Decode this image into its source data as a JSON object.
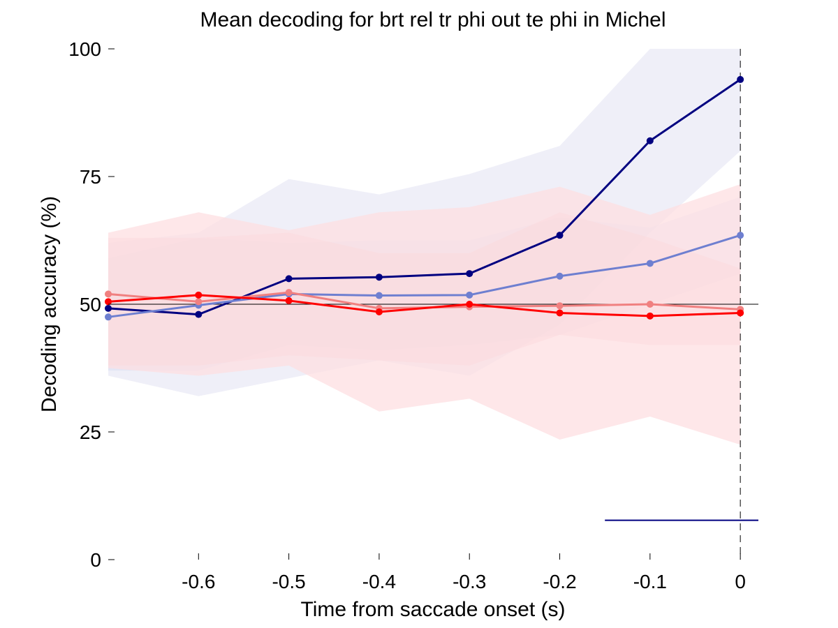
{
  "chart_data": {
    "type": "line",
    "title": "Mean decoding for brt rel tr phi out te phi in  Michel",
    "xlabel": "Time from saccade onset (s)",
    "ylabel": "Decoding accuracy (%)",
    "xlim": [
      -0.7,
      0.02
    ],
    "ylim": [
      0,
      100
    ],
    "x": [
      -0.7,
      -0.6,
      -0.5,
      -0.4,
      -0.3,
      -0.2,
      -0.1,
      0
    ],
    "x_ticks": [
      -0.6,
      -0.5,
      -0.4,
      -0.3,
      -0.2,
      -0.1,
      0
    ],
    "x_tick_labels": [
      "-0.6",
      "-0.5",
      "-0.4",
      "-0.3",
      "-0.2",
      "-0.1",
      "0"
    ],
    "y_ticks": [
      0,
      25,
      50,
      75,
      100
    ],
    "y_tick_labels": [
      "0",
      "25",
      "50",
      "75",
      "100"
    ],
    "grid": false,
    "legend": "none",
    "reference_line_y": 50,
    "event_line_x": 0,
    "significance_bar": {
      "x_start": -0.15,
      "x_end": 0.02,
      "y": 7.7,
      "color": "#000080"
    },
    "series": [
      {
        "color": "#000080",
        "band_color": "#e9e9f6",
        "band_opacity": 0.75,
        "values": [
          49.2,
          48.0,
          55.0,
          55.3,
          56.0,
          63.5,
          82.0,
          94.0
        ],
        "lower": [
          36.0,
          32.0,
          35.5,
          39.0,
          36.0,
          46.0,
          64.0,
          80.0
        ],
        "upper": [
          62.0,
          64.0,
          74.5,
          71.5,
          75.5,
          81.0,
          100.0,
          100.0
        ]
      },
      {
        "color": "#6e7fd0",
        "band_color": "#d8dcf2",
        "band_opacity": 0.45,
        "values": [
          47.5,
          49.8,
          52.0,
          51.7,
          51.8,
          55.5,
          58.0,
          63.5
        ],
        "lower": [
          37.0,
          37.0,
          42.0,
          41.0,
          42.0,
          44.0,
          50.0,
          56.0
        ],
        "upper": [
          59.0,
          63.0,
          62.0,
          62.5,
          62.5,
          67.0,
          65.0,
          71.0
        ]
      },
      {
        "color": "#f08080",
        "band_color": "#f7c2c8",
        "band_opacity": 0.45,
        "values": [
          52.0,
          50.5,
          52.3,
          49.2,
          49.5,
          49.7,
          50.0,
          49.0
        ],
        "lower": [
          38.0,
          38.0,
          40.0,
          39.0,
          38.0,
          44.0,
          42.0,
          42.0
        ],
        "upper": [
          63.0,
          63.0,
          64.0,
          60.0,
          60.0,
          68.0,
          63.0,
          57.0
        ]
      },
      {
        "color": "#ff0000",
        "band_color": "#fddfe1",
        "band_opacity": 0.75,
        "values": [
          50.5,
          51.8,
          50.7,
          48.5,
          50.0,
          48.3,
          47.7,
          48.3
        ],
        "lower": [
          37.5,
          36.0,
          38.0,
          29.0,
          31.5,
          23.5,
          28.0,
          22.5
        ],
        "upper": [
          64.0,
          68.0,
          64.5,
          68.0,
          69.0,
          73.0,
          67.5,
          73.5
        ]
      }
    ]
  }
}
